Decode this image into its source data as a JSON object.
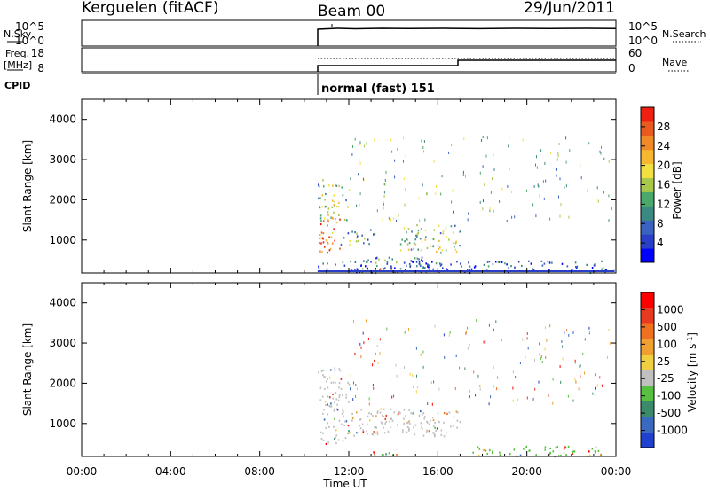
{
  "header": {
    "station": "Kerguelen (fitACF)",
    "beam": "Beam 00",
    "date": "29/Jun/2011"
  },
  "top_panels": {
    "nsky": {
      "label": "N.Sky",
      "ticks": [
        "10^5",
        "10^0"
      ],
      "right_label": "N.Search",
      "right_ticks": [
        "10^5",
        "10^0"
      ]
    },
    "freq": {
      "label_line1": "Freq.",
      "label_line2": "[MHz]",
      "ticks": [
        "18",
        "8"
      ],
      "right_label": "Nave",
      "right_ticks": [
        "60",
        "0"
      ]
    },
    "cpid": {
      "label": "CPID",
      "mode_text": "normal (fast) 151"
    }
  },
  "chart_data": [
    {
      "type": "heatmap",
      "name": "power",
      "ylabel": "Slant Range [km]",
      "ylim": [
        180,
        4500
      ],
      "xlim": [
        0,
        24
      ],
      "y_ticks": [
        "1000",
        "2000",
        "3000",
        "4000"
      ],
      "colorbar": {
        "label": "Power [dB]",
        "tick_labels": [
          "4",
          "8",
          "12",
          "16",
          "20",
          "24",
          "28"
        ],
        "colors": [
          "#0000ff",
          "#2a3fc8",
          "#3a62c0",
          "#3b8a82",
          "#4aa86a",
          "#a8c84a",
          "#f0e040",
          "#f5b830",
          "#f08a28",
          "#e85a20",
          "#f02010"
        ]
      },
      "regions": [
        {
          "t0": 10.6,
          "t1": 11.6,
          "r0": 700,
          "r1": 1600,
          "level": 0.85
        },
        {
          "t0": 10.6,
          "t1": 12.0,
          "r0": 1500,
          "r1": 2400,
          "level": 0.45
        },
        {
          "t0": 10.6,
          "t1": 11.0,
          "r0": 2300,
          "r1": 2700,
          "level": 0.3
        },
        {
          "t0": 11.6,
          "t1": 13.3,
          "r0": 900,
          "r1": 1300,
          "level": 0.35
        },
        {
          "t0": 14.3,
          "t1": 17.0,
          "r0": 700,
          "r1": 1400,
          "level": 0.5
        },
        {
          "t0": 12.5,
          "t1": 15.5,
          "r0": 300,
          "r1": 600,
          "level": 0.3
        },
        {
          "t0": 13.0,
          "t1": 14.5,
          "r0": 180,
          "r1": 320,
          "level": 0.75
        },
        {
          "t0": 10.6,
          "t1": 23.9,
          "r0": 180,
          "r1": 500,
          "level": 0.2
        }
      ]
    },
    {
      "type": "heatmap",
      "name": "velocity",
      "ylabel": "Slant Range [km]",
      "ylim": [
        180,
        4500
      ],
      "xlim": [
        0,
        24
      ],
      "y_ticks": [
        "1000",
        "2000",
        "3000",
        "4000"
      ],
      "x_ticks": [
        "00:00",
        "04:00",
        "08:00",
        "12:00",
        "16:00",
        "20:00",
        "00:00"
      ],
      "xlabel": "Time UT",
      "colorbar": {
        "label": "Velocity",
        "label_unit": "[m s",
        "label_exp": "-1",
        "label_close": "]",
        "tick_labels": [
          "1000",
          "500",
          "100",
          "25",
          "-25",
          "-100",
          "-500",
          "-1000"
        ],
        "colors": [
          "#2040d0",
          "#3a6ac0",
          "#3b8a6a",
          "#58c040",
          "#c0c0c0",
          "#f0d040",
          "#f0a030",
          "#f07020",
          "#e83a20",
          "#ff0000"
        ]
      },
      "regions": [
        {
          "t0": 10.6,
          "t1": 12.0,
          "r0": 500,
          "r1": 2400,
          "kind": "grey"
        },
        {
          "t0": 12.0,
          "t1": 17.0,
          "r0": 700,
          "r1": 1400,
          "kind": "grey"
        },
        {
          "t0": 13.0,
          "t1": 15.0,
          "r0": 180,
          "r1": 320,
          "kind": "green"
        },
        {
          "t0": 17.5,
          "t1": 23.5,
          "r0": 180,
          "r1": 450,
          "kind": "green"
        }
      ]
    }
  ]
}
